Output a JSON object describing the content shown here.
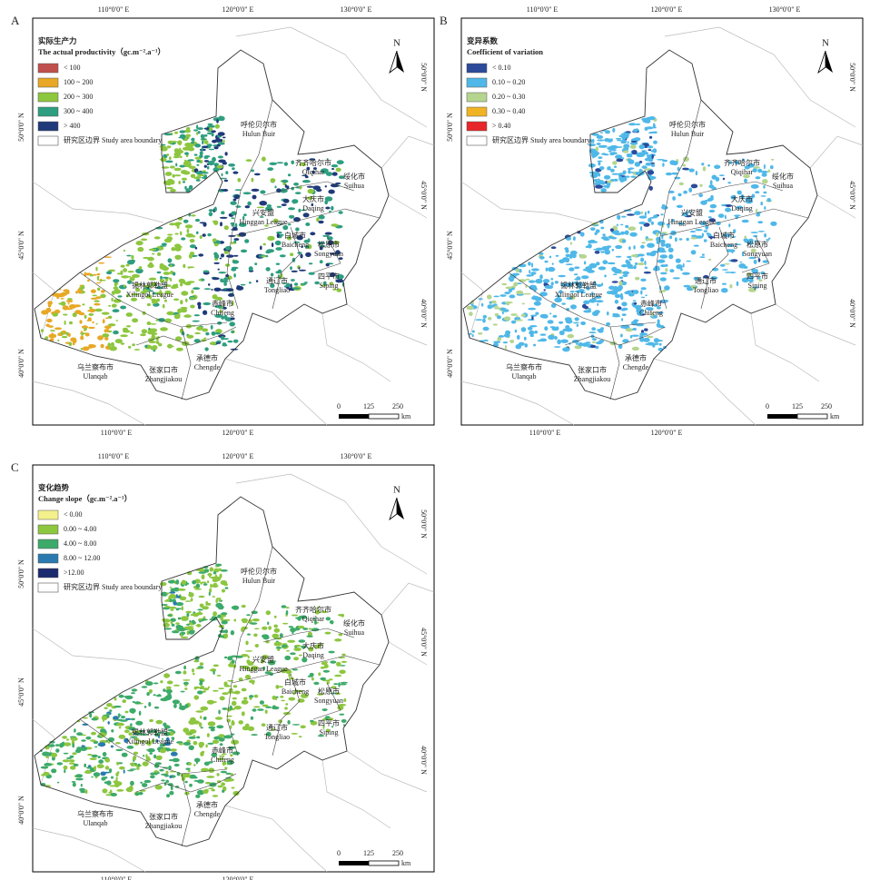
{
  "panels": [
    {
      "letter": "A",
      "legend": {
        "title_cn": "实际生产力",
        "title_en": "The actual productivity（gc.m⁻².a⁻¹）",
        "items": [
          {
            "label": "< 100",
            "color": "#c0504d"
          },
          {
            "label": "100 ~ 200",
            "color": "#e8a825"
          },
          {
            "label": "200 ~ 300",
            "color": "#8dc63f"
          },
          {
            "label": "300 ~ 400",
            "color": "#2e9e80"
          },
          {
            "label": "> 400",
            "color": "#1f3a7a"
          }
        ],
        "boundary": "研究区边界 Study area boundary"
      }
    },
    {
      "letter": "B",
      "legend": {
        "title_cn": "变异系数",
        "title_en": "Coefficient of variation",
        "items": [
          {
            "label": "< 0.10",
            "color": "#2c4a9a"
          },
          {
            "label": "0.10 ~ 0.20",
            "color": "#4fb8e8"
          },
          {
            "label": "0.20 ~ 0.30",
            "color": "#b5d58f"
          },
          {
            "label": "0.30 ~ 0.40",
            "color": "#f0b323"
          },
          {
            "label": "> 0.40",
            "color": "#e8262a"
          }
        ],
        "boundary": "研究区边界 Study area boundary"
      }
    },
    {
      "letter": "C",
      "legend": {
        "title_cn": "变化趋势",
        "title_en": "Change slope（gc.m⁻².a⁻¹）",
        "items": [
          {
            "label": "< 0.00",
            "color": "#f4f08c"
          },
          {
            "label": "0.00 ~ 4.00",
            "color": "#8dc63f"
          },
          {
            "label": "4.00 ~ 8.00",
            "color": "#3daa6a"
          },
          {
            "label": "8.00 ~ 12.00",
            "color": "#2a7ab0"
          },
          {
            "label": ">12.00",
            "color": "#1c2a6e"
          }
        ],
        "boundary": "研究区边界 Study area boundary"
      }
    }
  ],
  "map_labels": {
    "top_lon": [
      "110°0'0\" E",
      "120°0'0\" E",
      "130°0'0\" E"
    ],
    "bottom_lon": [
      "110°0'0\" E",
      "120°0'0\" E"
    ],
    "left_lat": [
      "50°0'0\" N",
      "45°0'0\" N",
      "40°0'0\" N"
    ],
    "right_lat": [
      "50°0'0\" N",
      "45°0'0\" N",
      "40°0'0\" N"
    ],
    "north": "N",
    "scale": [
      0,
      125,
      250
    ],
    "scale_unit": "km"
  },
  "cities": [
    {
      "cn": "呼伦贝尔市",
      "en": "Hulun Buir"
    },
    {
      "cn": "齐齐哈尔市",
      "en": "Qiqihar"
    },
    {
      "cn": "绥化市",
      "en": "Suihua"
    },
    {
      "cn": "大庆市",
      "en": "Daqing"
    },
    {
      "cn": "兴安盟",
      "en": "Hinggan League"
    },
    {
      "cn": "白城市",
      "en": "Baicheng"
    },
    {
      "cn": "松原市",
      "en": "Songyuan"
    },
    {
      "cn": "四平市",
      "en": "Siping"
    },
    {
      "cn": "通辽市",
      "en": "Tongliao"
    },
    {
      "cn": "锡林郭勒盟",
      "en": "Xilingol League"
    },
    {
      "cn": "赤峰市",
      "en": "Chifeng"
    },
    {
      "cn": "乌兰察布市",
      "en": "Ulanqab"
    },
    {
      "cn": "张家口市",
      "en": "Zhangjiakou"
    },
    {
      "cn": "承德市",
      "en": "Chengde"
    }
  ]
}
